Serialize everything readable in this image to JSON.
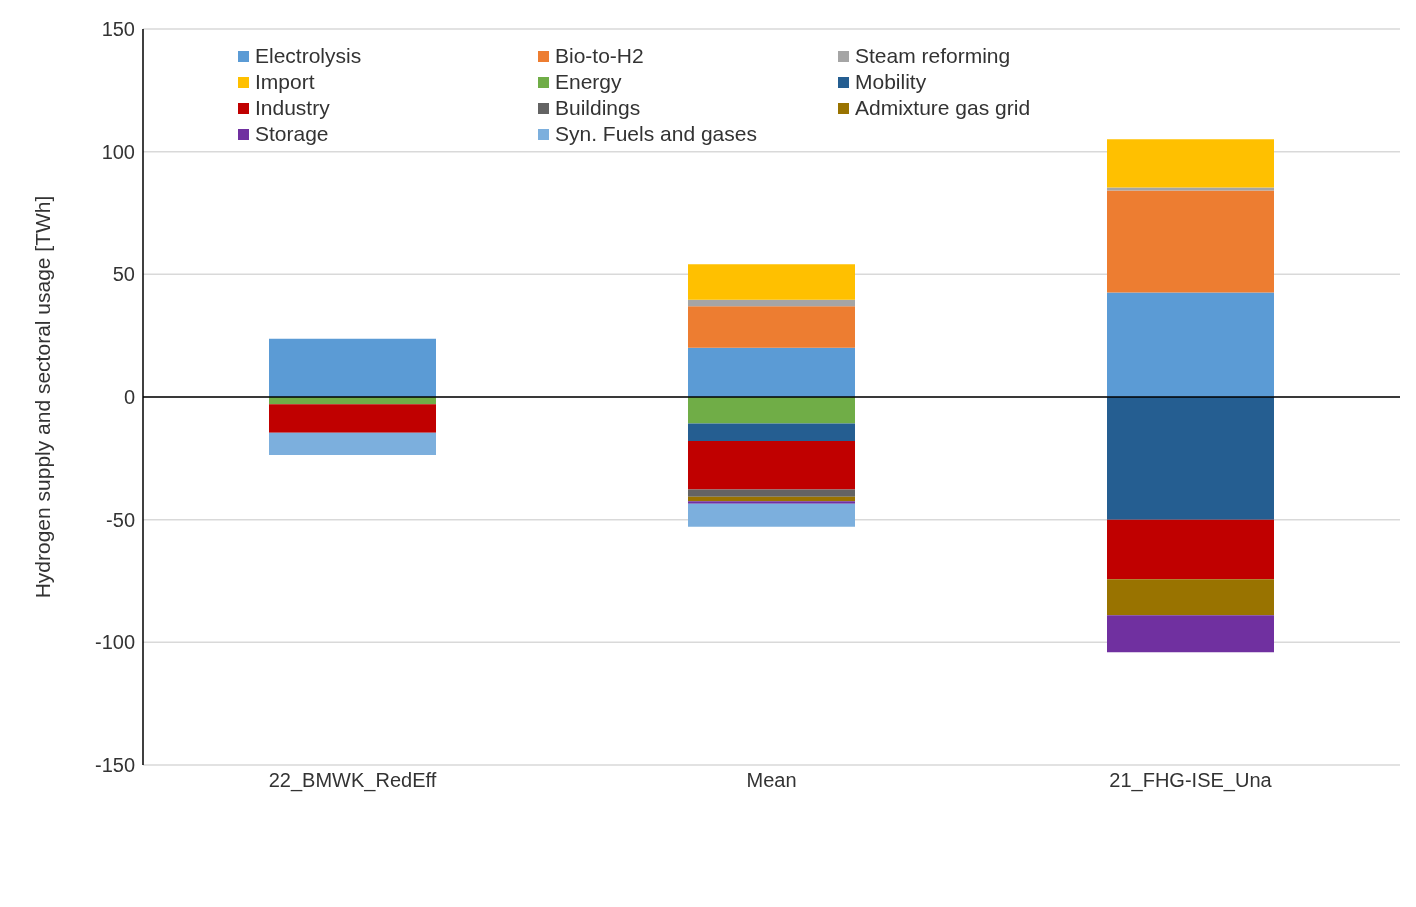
{
  "chart_data": {
    "type": "bar",
    "stacked": true,
    "ylabel": "Hydrogen supply and sectoral usage [TWh]",
    "categories": [
      "22_BMWK_RedEff",
      "Mean",
      "21_FHG-ISE_Una"
    ],
    "ylim": [
      -150,
      150
    ],
    "yticks": [
      -150,
      -100,
      -50,
      0,
      50,
      100,
      150
    ],
    "grid": "y",
    "legend": "top left",
    "series": [
      {
        "name": "Electrolysis",
        "color": "#5b9bd5",
        "values": [
          23.7,
          20.1,
          42.6
        ]
      },
      {
        "name": "Bio-to-H2",
        "color": "#ed7d31",
        "values": [
          null,
          16.9,
          41.6
        ]
      },
      {
        "name": "Steam reforming",
        "color": "#a5a5a5",
        "values": [
          null,
          2.6,
          1.2
        ]
      },
      {
        "name": "Import",
        "color": "#ffc000",
        "values": [
          null,
          14.5,
          19.7
        ]
      },
      {
        "name": "Energy",
        "color": "#70ad47",
        "values": [
          -3,
          -10.8,
          null
        ]
      },
      {
        "name": "Mobility",
        "color": "#255e91",
        "values": [
          null,
          -7.1,
          -50
        ]
      },
      {
        "name": "Industry",
        "color": "#c00000",
        "values": [
          -11.6,
          -19.8,
          -24.3
        ]
      },
      {
        "name": "Buildings",
        "color": "#636363",
        "values": [
          null,
          -3,
          null
        ]
      },
      {
        "name": "Admixture gas grid",
        "color": "#997300",
        "values": [
          null,
          -1.8,
          -14.7
        ]
      },
      {
        "name": "Storage",
        "color": "#7030a0",
        "values": [
          null,
          -1,
          -15
        ]
      },
      {
        "name": "Syn. Fuels and gases",
        "color": "#7cafdd",
        "values": [
          -9,
          -9.4,
          null
        ]
      }
    ]
  }
}
